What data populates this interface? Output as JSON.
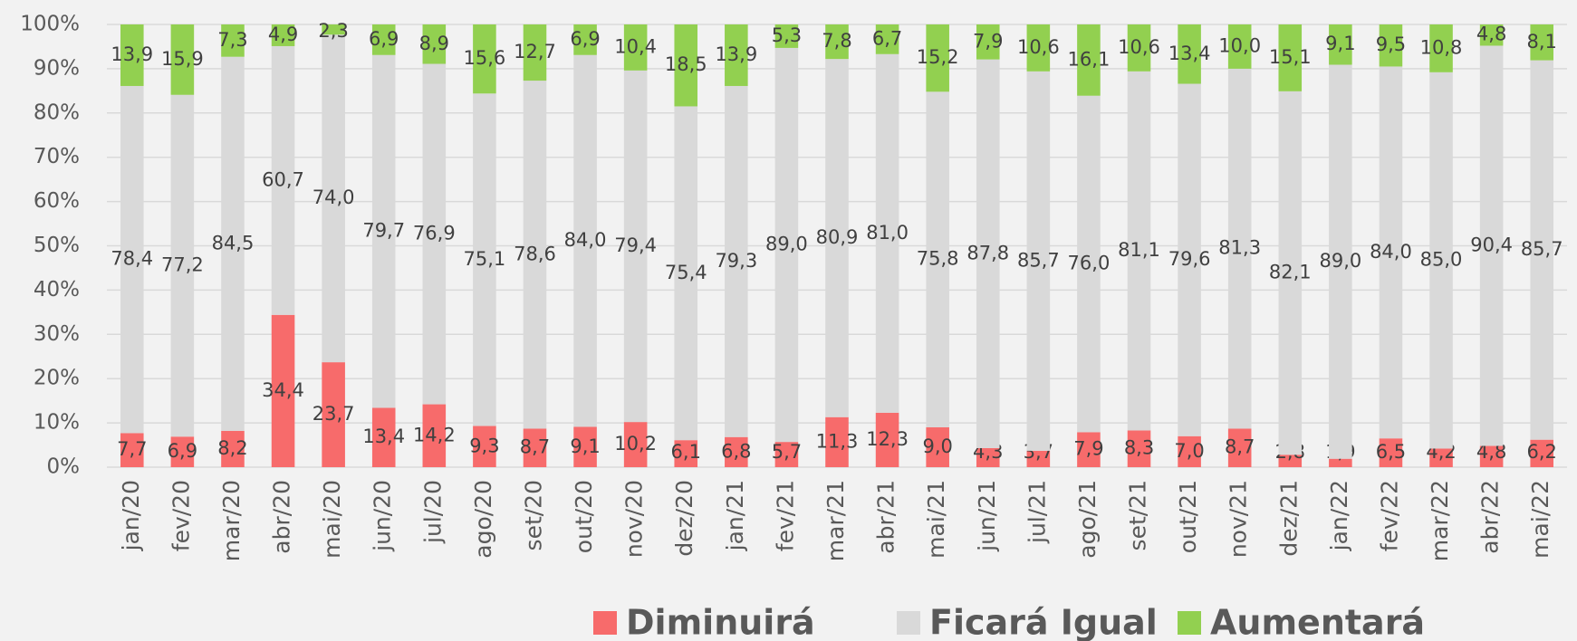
{
  "chart_data": {
    "type": "stacked_bar",
    "categories": [
      "jan/20",
      "fev/20",
      "mar/20",
      "abr/20",
      "mai/20",
      "jun/20",
      "jul/20",
      "ago/20",
      "set/20",
      "out/20",
      "nov/20",
      "dez/20",
      "jan/21",
      "fev/21",
      "mar/21",
      "abr/21",
      "mai/21",
      "jun/21",
      "jul/21",
      "ago/21",
      "set/21",
      "out/21",
      "nov/21",
      "dez/21",
      "jan/22",
      "fev/22",
      "mar/22",
      "abr/22",
      "mai/22"
    ],
    "series": [
      {
        "name": "Diminuirá",
        "color": "#f76b6b",
        "values": [
          7.7,
          6.9,
          8.2,
          34.4,
          23.7,
          13.4,
          14.2,
          9.3,
          8.7,
          9.1,
          10.2,
          6.1,
          6.8,
          5.7,
          11.3,
          12.3,
          9.0,
          4.3,
          3.7,
          7.9,
          8.3,
          7.0,
          8.7,
          2.8,
          1.9,
          6.5,
          4.2,
          4.8,
          6.2
        ],
        "value_labels": [
          "7,7",
          "6,9",
          "8,2",
          "34,4",
          "23,7",
          "13,4",
          "14,2",
          "9,3",
          "8,7",
          "9,1",
          "10,2",
          "6,1",
          "6,8",
          "5,7",
          "11,3",
          "12,3",
          "9,0",
          "4,3",
          "3,7",
          "7,9",
          "8,3",
          "7,0",
          "8,7",
          "2,8",
          "1,9",
          "6,5",
          "4,2",
          "4,8",
          "6,2"
        ]
      },
      {
        "name": "Ficará Igual",
        "color": "#d9d9d9",
        "values": [
          78.4,
          77.2,
          84.5,
          60.7,
          74.0,
          79.7,
          76.9,
          75.1,
          78.6,
          84.0,
          79.4,
          75.4,
          79.3,
          89.0,
          80.9,
          81.0,
          75.8,
          87.8,
          85.7,
          76.0,
          81.1,
          79.6,
          81.3,
          82.1,
          89.0,
          84.0,
          85.0,
          90.4,
          85.7
        ],
        "value_labels": [
          "78,4",
          "77,2",
          "84,5",
          "60,7",
          "74,0",
          "79,7",
          "76,9",
          "75,1",
          "78,6",
          "84,0",
          "79,4",
          "75,4",
          "79,3",
          "89,0",
          "80,9",
          "81,0",
          "75,8",
          "87,8",
          "85,7",
          "76,0",
          "81,1",
          "79,6",
          "81,3",
          "82,1",
          "89,0",
          "84,0",
          "85,0",
          "90,4",
          "85,7"
        ]
      },
      {
        "name": "Aumentará",
        "color": "#92d050",
        "values": [
          13.9,
          15.9,
          7.3,
          4.9,
          2.3,
          6.9,
          8.9,
          15.6,
          12.7,
          6.9,
          10.4,
          18.5,
          13.9,
          5.3,
          7.8,
          6.7,
          15.2,
          7.9,
          10.6,
          16.1,
          10.6,
          13.4,
          10.0,
          15.1,
          9.1,
          9.5,
          10.8,
          4.8,
          8.1
        ],
        "value_labels": [
          "13,9",
          "15,9",
          "7,3",
          "4,9",
          "2,3",
          "6,9",
          "8,9",
          "15,6",
          "12,7",
          "6,9",
          "10,4",
          "18,5",
          "13,9",
          "5,3",
          "7,8",
          "6,7",
          "15,2",
          "7,9",
          "10,6",
          "16,1",
          "10,6",
          "13,4",
          "10,0",
          "15,1",
          "9,1",
          "9,5",
          "10,8",
          "4,8",
          "8,1"
        ]
      }
    ],
    "ylim": [
      0,
      100
    ],
    "yticks": [
      {
        "value": 0,
        "label": "0%"
      },
      {
        "value": 10,
        "label": "10%"
      },
      {
        "value": 20,
        "label": "20%"
      },
      {
        "value": 30,
        "label": "30%"
      },
      {
        "value": 40,
        "label": "40%"
      },
      {
        "value": 50,
        "label": "50%"
      },
      {
        "value": 60,
        "label": "60%"
      },
      {
        "value": 70,
        "label": "70%"
      },
      {
        "value": 80,
        "label": "80%"
      },
      {
        "value": 90,
        "label": "90%"
      },
      {
        "value": 100,
        "label": "100%"
      }
    ],
    "grid": true,
    "legend": "bottom"
  }
}
